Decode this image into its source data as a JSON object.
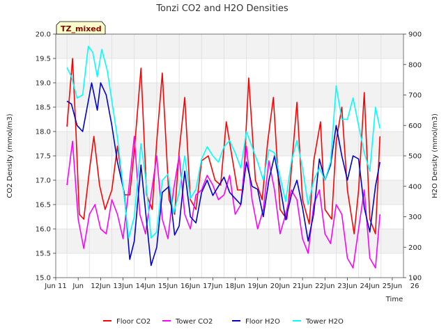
{
  "chart_data": {
    "type": "line",
    "title": "Tonzi CO2 and H2O Densities",
    "xlabel": "Time",
    "ylabel_left": "CO2 Density (mmol/m3)",
    "ylabel_right": "H2O Density (mmol/m3)",
    "badge": "TZ_mixed",
    "x_tick_labels": [
      "Jun 11",
      "Jun",
      "12Jun",
      "13Jun",
      "14Jun",
      "15Jun",
      "16Jun",
      "17Jun",
      "18Jun",
      "19Jun",
      "20Jun",
      "21Jun",
      "22Jun",
      "23Jun",
      "24Jun",
      "25Jun",
      "26"
    ],
    "y_left_ticks": [
      "15.0",
      "15.5",
      "16.0",
      "16.5",
      "17.0",
      "17.5",
      "18.0",
      "18.5",
      "19.0",
      "19.5",
      "20.0"
    ],
    "y_right_ticks": [
      "100",
      "200",
      "300",
      "400",
      "500",
      "600",
      "700",
      "800",
      "900"
    ],
    "xlim": [
      10.5,
      26
    ],
    "ylim_left": [
      15.0,
      20.0
    ],
    "ylim_right": [
      100,
      900
    ],
    "grid": true,
    "legend_position": "bottom",
    "series": [
      {
        "name": "Floor CO2",
        "axis": "left",
        "color": "#ff0000",
        "x": [
          11.0,
          11.25,
          11.4,
          11.55,
          11.75,
          12.0,
          12.2,
          12.45,
          12.7,
          13.0,
          13.25,
          13.55,
          13.8,
          14.0,
          14.3,
          14.55,
          14.8,
          15.0,
          15.25,
          15.55,
          15.8,
          16.0,
          16.25,
          16.5,
          16.75,
          17.0,
          17.3,
          17.6,
          17.85,
          18.1,
          18.35,
          18.6,
          18.85,
          19.1,
          19.4,
          19.7,
          19.95,
          20.2,
          20.5,
          20.8,
          21.0,
          21.25,
          21.5,
          21.8,
          22.0,
          22.3,
          22.5,
          22.8,
          23.0,
          23.25,
          23.5,
          23.8,
          24.0,
          24.25,
          24.5,
          24.75,
          24.95
        ],
        "y": [
          18.1,
          19.5,
          18.0,
          16.3,
          16.2,
          17.2,
          17.9,
          16.9,
          16.4,
          16.8,
          17.7,
          16.7,
          16.7,
          17.6,
          19.3,
          16.7,
          16.4,
          17.8,
          19.2,
          16.6,
          16.3,
          17.6,
          18.7,
          16.6,
          16.4,
          17.4,
          17.5,
          17.0,
          16.9,
          18.2,
          17.5,
          16.8,
          16.8,
          19.1,
          17.0,
          16.6,
          17.8,
          18.7,
          16.4,
          16.2,
          17.2,
          18.6,
          16.6,
          16.1,
          17.4,
          18.2,
          16.4,
          16.2,
          17.8,
          18.5,
          16.8,
          15.9,
          16.8,
          18.8,
          16.2,
          15.9,
          17.9
        ]
      },
      {
        "name": "Tower CO2",
        "axis": "left",
        "color": "#ff00ff",
        "x": [
          11.0,
          11.25,
          11.5,
          11.75,
          12.0,
          12.25,
          12.5,
          12.75,
          13.0,
          13.25,
          13.5,
          13.75,
          14.0,
          14.25,
          14.5,
          14.75,
          15.0,
          15.25,
          15.5,
          15.75,
          16.0,
          16.25,
          16.5,
          16.75,
          17.0,
          17.25,
          17.5,
          17.75,
          18.0,
          18.25,
          18.5,
          18.75,
          19.0,
          19.25,
          19.5,
          19.75,
          20.0,
          20.25,
          20.5,
          20.75,
          21.0,
          21.25,
          21.5,
          21.75,
          22.0,
          22.25,
          22.5,
          22.75,
          23.0,
          23.25,
          23.5,
          23.75,
          24.0,
          24.25,
          24.5,
          24.75,
          24.95
        ],
        "y": [
          16.9,
          17.8,
          16.2,
          15.6,
          16.3,
          16.5,
          16.0,
          15.9,
          16.6,
          16.3,
          15.8,
          16.8,
          17.9,
          16.3,
          15.9,
          16.7,
          17.5,
          16.2,
          15.8,
          16.8,
          17.5,
          16.3,
          16.0,
          16.7,
          16.8,
          17.1,
          16.9,
          16.6,
          16.7,
          17.1,
          16.3,
          16.5,
          17.7,
          16.6,
          16.0,
          16.4,
          17.4,
          16.8,
          15.9,
          16.3,
          16.8,
          16.6,
          15.8,
          15.5,
          16.5,
          16.8,
          15.9,
          15.7,
          16.5,
          16.3,
          15.4,
          15.2,
          16.0,
          16.8,
          15.4,
          15.2,
          16.3
        ]
      },
      {
        "name": "Floor H2O",
        "axis": "right",
        "color": "#0000cd",
        "x": [
          11.0,
          11.2,
          11.45,
          11.7,
          11.95,
          12.1,
          12.35,
          12.5,
          12.75,
          13.0,
          13.25,
          13.55,
          13.8,
          14.0,
          14.3,
          14.5,
          14.75,
          15.0,
          15.25,
          15.55,
          15.8,
          16.0,
          16.25,
          16.5,
          16.75,
          17.0,
          17.25,
          17.5,
          17.75,
          18.0,
          18.25,
          18.5,
          18.75,
          19.0,
          19.25,
          19.5,
          19.75,
          20.0,
          20.25,
          20.5,
          20.75,
          21.0,
          21.25,
          21.5,
          21.75,
          22.0,
          22.25,
          22.5,
          22.75,
          23.0,
          23.25,
          23.5,
          23.75,
          24.0,
          24.25,
          24.5,
          24.75,
          24.95
        ],
        "y": [
          680,
          670,
          600,
          580,
          680,
          740,
          650,
          740,
          700,
          600,
          480,
          380,
          160,
          220,
          470,
          320,
          140,
          200,
          380,
          400,
          240,
          270,
          450,
          300,
          280,
          380,
          420,
          370,
          400,
          430,
          380,
          360,
          340,
          480,
          400,
          390,
          300,
          420,
          500,
          400,
          290,
          370,
          420,
          330,
          220,
          310,
          490,
          420,
          470,
          600,
          500,
          420,
          500,
          490,
          330,
          250,
          400,
          480
        ]
      },
      {
        "name": "Tower H2O",
        "axis": "right",
        "color": "#00ffff",
        "x": [
          11.0,
          11.2,
          11.45,
          11.7,
          11.95,
          12.15,
          12.35,
          12.55,
          12.8,
          13.0,
          13.25,
          13.5,
          13.75,
          14.0,
          14.3,
          14.5,
          14.75,
          15.0,
          15.25,
          15.5,
          15.75,
          16.0,
          16.25,
          16.5,
          16.75,
          17.0,
          17.25,
          17.5,
          17.75,
          18.0,
          18.25,
          18.5,
          18.75,
          19.0,
          19.25,
          19.5,
          19.75,
          20.0,
          20.25,
          20.5,
          20.75,
          21.0,
          21.25,
          21.5,
          21.75,
          22.0,
          22.25,
          22.5,
          22.75,
          23.0,
          23.25,
          23.5,
          23.75,
          24.0,
          24.25,
          24.5,
          24.75,
          24.95
        ],
        "y": [
          790,
          760,
          690,
          700,
          860,
          840,
          760,
          850,
          780,
          680,
          560,
          400,
          230,
          300,
          540,
          430,
          230,
          250,
          420,
          440,
          310,
          380,
          500,
          360,
          390,
          490,
          530,
          500,
          480,
          530,
          550,
          510,
          460,
          580,
          530,
          480,
          420,
          520,
          510,
          430,
          350,
          480,
          550,
          460,
          340,
          420,
          460,
          420,
          480,
          730,
          620,
          620,
          690,
          600,
          510,
          450,
          660,
          590
        ]
      }
    ]
  }
}
